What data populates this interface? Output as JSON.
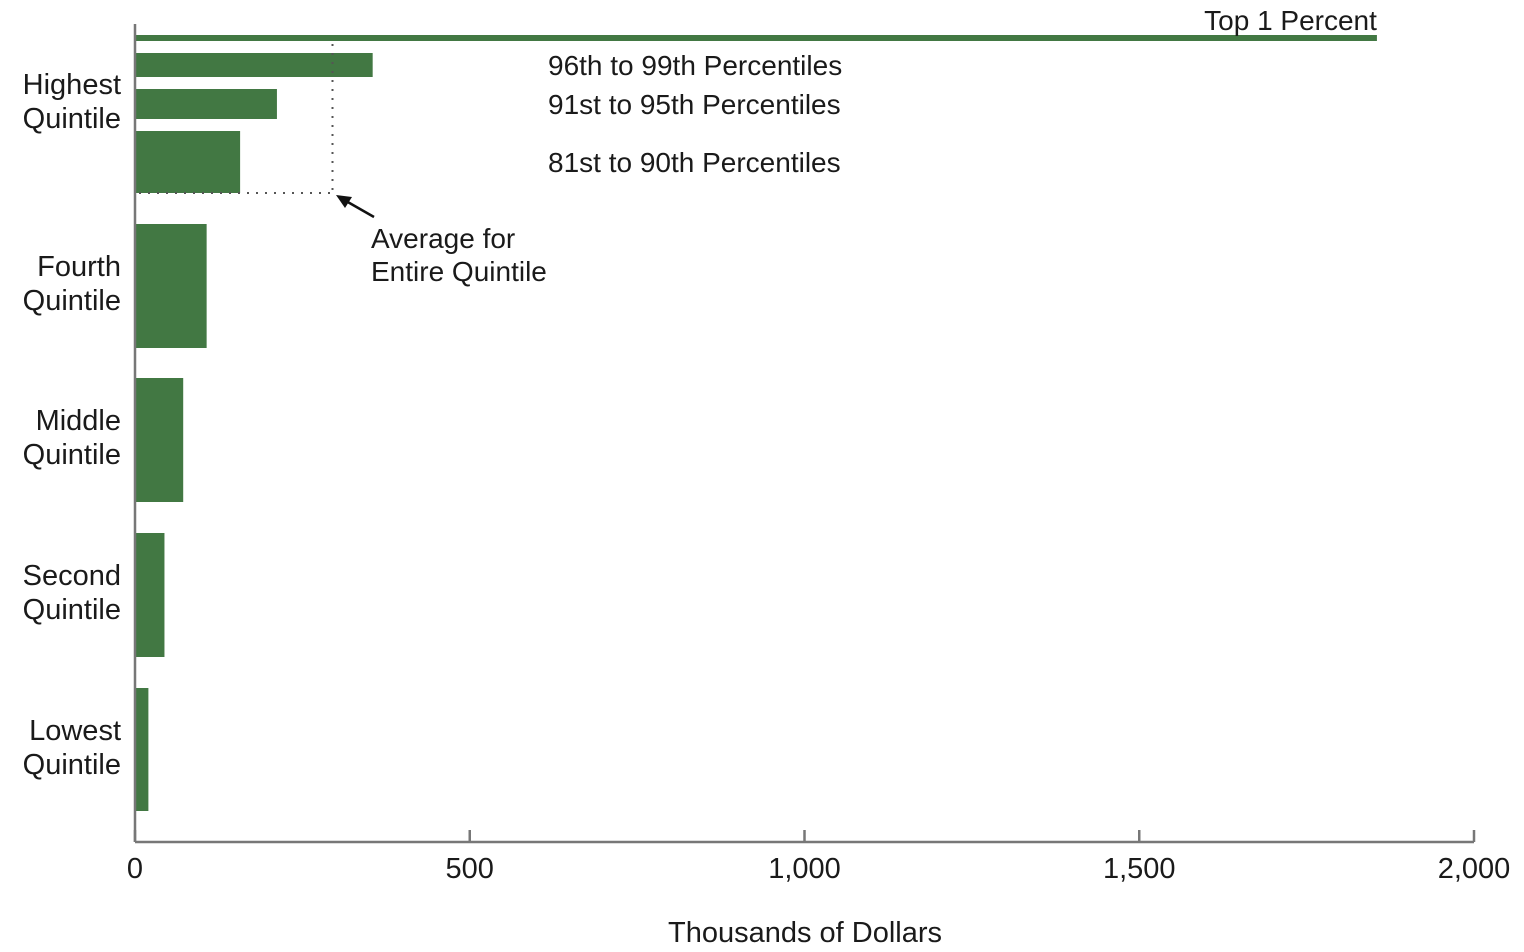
{
  "chart_data": {
    "type": "bar",
    "orientation": "horizontal",
    "xlabel": "Thousands of Dollars",
    "xlim": [
      0,
      2000
    ],
    "xticks": [
      0,
      500,
      1000,
      1500,
      2000
    ],
    "xtick_labels": [
      "0",
      "500",
      "1,000",
      "1,500",
      "2,000"
    ],
    "grid": false,
    "bar_color": "#427843",
    "categories": [
      {
        "label": [
          "Highest",
          "Quintile"
        ],
        "value": 295
      },
      {
        "label": [
          "Fourth",
          "Quintile"
        ],
        "value": 107
      },
      {
        "label": [
          "Middle",
          "Quintile"
        ],
        "value": 72
      },
      {
        "label": [
          "Second",
          "Quintile"
        ],
        "value": 44
      },
      {
        "label": [
          "Lowest",
          "Quintile"
        ],
        "value": 20
      }
    ],
    "highest_quintile_breakdown": [
      {
        "label": "Top 1 Percent",
        "value": 1855
      },
      {
        "label": "96th to 99th Percentiles",
        "value": 355
      },
      {
        "label": "91st to 95th Percentiles",
        "value": 212
      },
      {
        "label": "81st to 90th Percentiles",
        "value": 157
      }
    ],
    "annotation": {
      "lines": [
        "Average for",
        "Entire Quintile"
      ],
      "refers_to": "Highest Quintile average",
      "value": 295
    }
  }
}
